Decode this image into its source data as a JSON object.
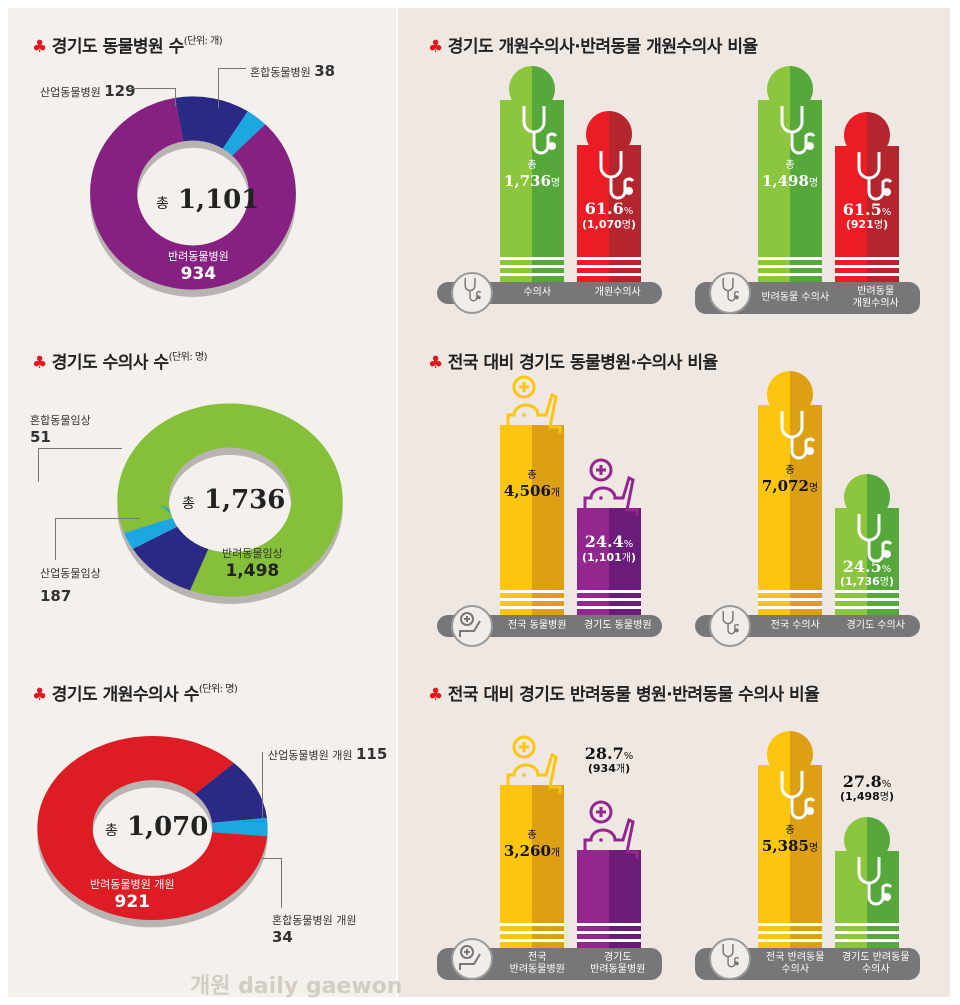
{
  "titles": {
    "hospitals": "경기도 동물병원 수",
    "hospitals_unit": "(단위: 개)",
    "vets": "경기도 수의사 수",
    "vets_unit": "(단위: 명)",
    "openvets": "경기도 개원수의사 수",
    "openvets_unit": "(단위: 명)",
    "ratio1": "경기도 개원수의사·반려동물 개원수의사 비율",
    "ratio2": "전국 대비 경기도 동물병원·수의사 비율",
    "ratio3": "전국 대비 경기도 반려동물 병원·반려동물 수의사 비율"
  },
  "common": {
    "total_prefix": "총",
    "club": "♣"
  },
  "watermark": "개원 daily gaewon",
  "chart_data": [
    {
      "type": "pie",
      "title": "경기도 동물병원 수",
      "unit": "개",
      "total": "1,101",
      "segments": [
        {
          "label": "산업동물병원",
          "value": 129,
          "display": "129",
          "color": "#2a2a86"
        },
        {
          "label": "혼합동물병원",
          "value": 38,
          "display": "38",
          "color": "#1ca7e0"
        },
        {
          "label": "반려동물병원",
          "value": 934,
          "display": "934",
          "color": "#862182"
        }
      ]
    },
    {
      "type": "pie",
      "title": "경기도 수의사 수",
      "unit": "명",
      "total": "1,736",
      "segments": [
        {
          "label": "반려동물임상",
          "value": 1498,
          "display": "1,498",
          "color": "#86bf3a"
        },
        {
          "label": "산업동물임상",
          "value": 187,
          "display": "187",
          "color": "#2a2a86"
        },
        {
          "label": "혼합동물임상",
          "value": 51,
          "display": "51",
          "color": "#1ca7e0"
        }
      ]
    },
    {
      "type": "pie",
      "title": "경기도 개원수의사 수",
      "unit": "명",
      "total": "1,070",
      "segments": [
        {
          "label": "산업동물병원 개원",
          "value": 115,
          "display": "115",
          "color": "#2a2a86"
        },
        {
          "label": "혼합동물병원 개원",
          "value": 34,
          "display": "34",
          "color": "#1ca7e0"
        },
        {
          "label": "반려동물병원 개원",
          "value": 921,
          "display": "921",
          "color": "#de1c24"
        }
      ]
    },
    {
      "type": "bar",
      "categories": [
        "수의사",
        "개원수의사"
      ],
      "values": [
        1736,
        1070
      ],
      "labels": [
        "1,736",
        "1,070"
      ],
      "unit": "명",
      "ratio": "61.6",
      "pct": "%"
    },
    {
      "type": "bar",
      "categories": [
        "반려동물 수의사",
        "반려동물 개원수의사"
      ],
      "values": [
        1498,
        921
      ],
      "labels": [
        "1,498",
        "921"
      ],
      "unit": "명",
      "ratio": "61.5",
      "pct": "%"
    },
    {
      "type": "bar",
      "categories": [
        "전국 동물병원",
        "경기도 동물병원"
      ],
      "values": [
        4506,
        1101
      ],
      "labels": [
        "4,506",
        "1,101"
      ],
      "unit": "개",
      "ratio": "24.4",
      "pct": "%"
    },
    {
      "type": "bar",
      "categories": [
        "전국 수의사",
        "경기도 수의사"
      ],
      "values": [
        7072,
        1736
      ],
      "labels": [
        "7,072",
        "1,736"
      ],
      "unit": "명",
      "ratio": "24.5",
      "pct": "%"
    },
    {
      "type": "bar",
      "categories": [
        "전국 반려동물병원",
        "경기도 반려동물병원"
      ],
      "values": [
        3260,
        934
      ],
      "labels": [
        "3,260",
        "934"
      ],
      "unit": "개",
      "ratio": "28.7",
      "pct": "%"
    },
    {
      "type": "bar",
      "categories": [
        "전국 반려동물 수의사",
        "경기도 반려동물 수의사"
      ],
      "values": [
        5385,
        1498
      ],
      "labels": [
        "5,385",
        "1,498"
      ],
      "unit": "명",
      "ratio": "27.8",
      "pct": "%"
    }
  ]
}
